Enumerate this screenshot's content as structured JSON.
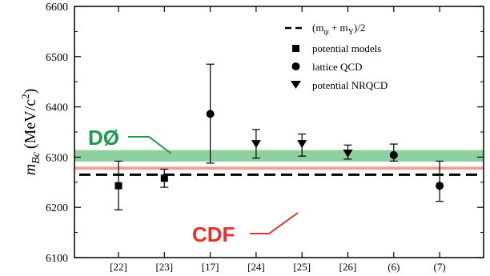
{
  "chart_data": {
    "type": "scatter",
    "ylabel_main": "m",
    "ylabel_sub": "Bc",
    "ylabel_units": "(MeV/c",
    "ylabel_sup": "2",
    "ylabel_close": ")",
    "ylim": [
      6100,
      6600
    ],
    "yticks": [
      "6100",
      "6200",
      "6300",
      "6400",
      "6500",
      "6600"
    ],
    "categories": [
      "[22]",
      "[23]",
      "[17]",
      "[24]",
      "[25]",
      "[26]",
      "(6)",
      "(7)"
    ],
    "series": [
      {
        "name": "potential models",
        "marker": "square",
        "points": [
          {
            "category": "[22]",
            "y": 6243,
            "ylow": 6195,
            "yhigh": 6292
          },
          {
            "category": "[23]",
            "y": 6258,
            "ylow": 6240,
            "yhigh": 6276
          }
        ]
      },
      {
        "name": "lattice QCD",
        "marker": "circle",
        "points": [
          {
            "category": "[17]",
            "y": 6386,
            "ylow": 6288,
            "yhigh": 6485
          },
          {
            "category": "(6)",
            "y": 6304,
            "ylow": 6292,
            "yhigh": 6326
          },
          {
            "category": "(7)",
            "y": 6243,
            "ylow": 6212,
            "yhigh": 6292
          }
        ]
      },
      {
        "name": "potential NRQCD",
        "marker": "triangle-down",
        "points": [
          {
            "category": "[24]",
            "y": 6326,
            "ylow": 6298,
            "yhigh": 6355
          },
          {
            "category": "[25]",
            "y": 6326,
            "ylow": 6302,
            "yhigh": 6346
          },
          {
            "category": "[26]",
            "y": 6307,
            "ylow": 6296,
            "yhigh": 6324
          }
        ]
      }
    ],
    "reference_line": {
      "label_main": "(m",
      "label_sub1": "ψ",
      "label_plus": " + m",
      "label_sub2": "Υ",
      "label_end": ")/2",
      "y": 6265,
      "style": "dashed"
    },
    "measurements": [
      {
        "name": "DØ",
        "y_low": 6291,
        "y_high": 6314,
        "color": "#8fd19e",
        "text_color": "#1a9c4a"
      },
      {
        "name": "CDF",
        "y_low": 6275,
        "y_high": 6281,
        "color": "#f2a08e",
        "text_color": "#e8302b"
      }
    ],
    "legend_position": "top-right"
  }
}
